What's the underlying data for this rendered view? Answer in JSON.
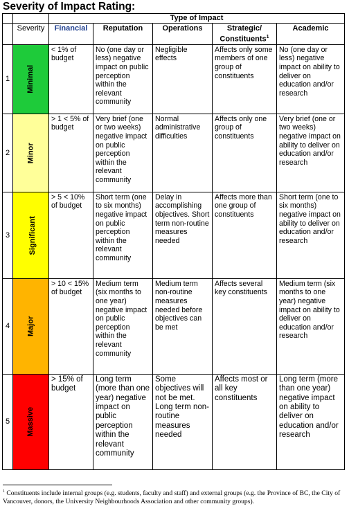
{
  "title": "Severity of Impact Rating:",
  "type_of_impact": "Type of Impact",
  "headers": {
    "severity": "Severity",
    "financial": "Financial",
    "reputation": "Reputation",
    "operations": "Operations",
    "strategic": "Strategic/ Constituents",
    "strategic_sup": "1",
    "academic": "Academic"
  },
  "rows": [
    {
      "num": "1",
      "level": "Minimal",
      "color": "#1ecb3a",
      "financial": "< 1% of budget",
      "reputation": "No (one day or less) negative impact on public perception within the relevant community",
      "operations": "Negligible effects",
      "strategic": "Affects only some members of one group of constituents",
      "academic": "No (one day or less) negative impact on ability to deliver on education and/or research"
    },
    {
      "num": "2",
      "level": "Minor",
      "color": "#ffff99",
      "financial": "> 1 < 5% of budget",
      "reputation": "Very brief (one or two weeks) negative impact on public perception within the relevant community",
      "operations": "Normal administrative difficulties",
      "strategic": "Affects only one group of constituents",
      "academic": "Very brief (one or two weeks) negative impact on ability to deliver on education and/or research"
    },
    {
      "num": "3",
      "level": "Significant",
      "color": "#ffff00",
      "financial": "> 5 < 10% of budget",
      "reputation": "Short term (one to six months) negative impact on public perception within the relevant community",
      "operations": "Delay in accomplishing objectives. Short term non-routine measures needed",
      "strategic": "Affects more than one group of constituents",
      "academic": "Short term (one to six months) negative impact on ability to deliver on education and/or research"
    },
    {
      "num": "4",
      "level": "Major",
      "color": "#ffb400",
      "financial": "> 10 < 15% of budget",
      "reputation": "Medium term (six months to one year) negative impact on public perception within the relevant community",
      "operations": "Medium term non-routine measures needed before objectives can be met",
      "strategic": "Affects several key constituents",
      "academic": "Medium term (six months to one year) negative impact on ability to deliver on education and/or research"
    },
    {
      "num": "5",
      "level": "Massive",
      "color": "#ff0000",
      "financial": "> 15% of budget",
      "reputation": "Long term (more than one year) negative impact on public perception within the relevant community",
      "operations": "Some objectives will not be met. Long term non-routine measures needed",
      "strategic": "Affects most or all key constituents",
      "academic": "Long term (more than one year) negative impact on ability to deliver on education and/or research"
    }
  ],
  "footnote": {
    "marker": "1",
    "text": "Constituents include internal groups (e.g. students, faculty and staff) and external groups (e.g. the Province of BC, the City of Vancouver, donors, the University Neighbourhoods Association and other community groups)."
  }
}
